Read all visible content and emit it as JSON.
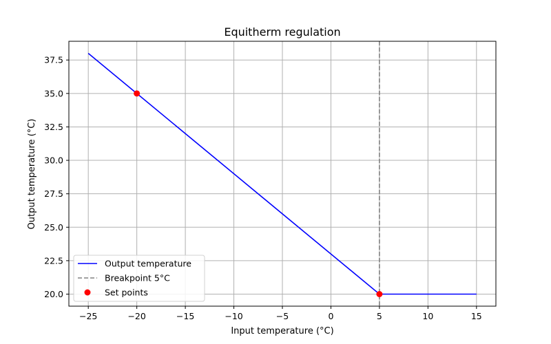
{
  "chart_data": {
    "type": "line",
    "title": "Equitherm regulation",
    "xlabel": "Input temperature (°C)",
    "ylabel": "Output temperature (°C)",
    "xlim": [
      -27.0,
      17.0
    ],
    "ylim": [
      19.1,
      38.9
    ],
    "xticks": [
      -25,
      -20,
      -15,
      -10,
      -5,
      0,
      5,
      10,
      15
    ],
    "yticks": [
      20.0,
      22.5,
      25.0,
      27.5,
      30.0,
      32.5,
      35.0,
      37.5
    ],
    "grid": true,
    "legend_position": "lower-left",
    "series": [
      {
        "name": "Output temperature",
        "kind": "line",
        "color": "#0000ff",
        "x": [
          -25,
          5,
          15
        ],
        "y": [
          38.0,
          20.0,
          20.0
        ]
      },
      {
        "name": "Breakpoint 5°C",
        "kind": "vline",
        "color": "#808080",
        "style": "dashed",
        "x": 5
      },
      {
        "name": "Set points",
        "kind": "scatter",
        "color": "#ff0000",
        "x": [
          -20,
          5
        ],
        "y": [
          35.0,
          20.0
        ]
      }
    ]
  }
}
